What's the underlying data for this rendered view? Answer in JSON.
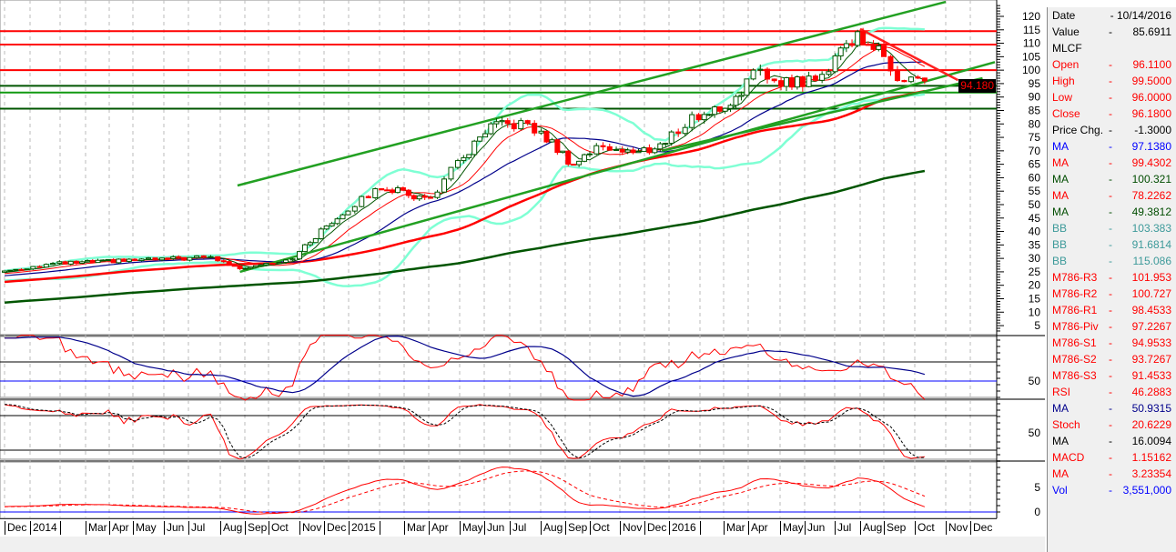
{
  "data_panel": {
    "rows": [
      {
        "label": "Date",
        "value": "- 10/14/2016",
        "color": "#000000"
      },
      {
        "label": "Value",
        "value": "85.6911",
        "color": "#000000"
      },
      {
        "label": "MLCF",
        "value": "",
        "color": "#000000"
      },
      {
        "label": "Open",
        "value": "96.1100",
        "color": "#ff0000"
      },
      {
        "label": "High",
        "value": "99.5000",
        "color": "#ff0000"
      },
      {
        "label": "Low",
        "value": "96.0000",
        "color": "#ff0000"
      },
      {
        "label": "Close",
        "value": "96.1800",
        "color": "#ff0000"
      },
      {
        "label": "Price Chg.",
        "value": "-1.3000",
        "color": "#000000"
      },
      {
        "label": "MA",
        "value": "97.1380",
        "color": "#0000ff"
      },
      {
        "label": "MA",
        "value": "99.4302",
        "color": "#ff0000"
      },
      {
        "label": "MA",
        "value": "100.321",
        "color": "#004d00"
      },
      {
        "label": "MA",
        "value": "78.2262",
        "color": "#ff0000"
      },
      {
        "label": "MA",
        "value": "49.3812",
        "color": "#004d00"
      },
      {
        "label": "BB",
        "value": "103.383",
        "color": "#3d9a9a"
      },
      {
        "label": "BB",
        "value": "91.6814",
        "color": "#3d9a9a"
      },
      {
        "label": "BB",
        "value": "115.086",
        "color": "#3d9a9a"
      },
      {
        "label": "M786-R3",
        "value": "101.953",
        "color": "#ff0000"
      },
      {
        "label": "M786-R2",
        "value": "100.727",
        "color": "#ff0000"
      },
      {
        "label": "M786-R1",
        "value": "98.4533",
        "color": "#ff0000"
      },
      {
        "label": "M786-Piv",
        "value": "97.2267",
        "color": "#ff0000"
      },
      {
        "label": "M786-S1",
        "value": "94.9533",
        "color": "#ff0000"
      },
      {
        "label": "M786-S2",
        "value": "93.7267",
        "color": "#ff0000"
      },
      {
        "label": "M786-S3",
        "value": "91.4533",
        "color": "#ff0000"
      },
      {
        "label": "RSI",
        "value": "46.2883",
        "color": "#ff0000"
      },
      {
        "label": "MA",
        "value": "50.9315",
        "color": "#00008b"
      },
      {
        "label": "Stoch",
        "value": "20.6229",
        "color": "#ff0000"
      },
      {
        "label": "MA",
        "value": "16.0094",
        "color": "#000000"
      },
      {
        "label": "MACD",
        "value": "1.15162",
        "color": "#ff0000"
      },
      {
        "label": "MA",
        "value": "3.23354",
        "color": "#ff0000"
      },
      {
        "label": "Vol",
        "value": "3,551,000",
        "color": "#0000ff"
      }
    ]
  },
  "price_tag": "94.180",
  "chart_data": {
    "type": "candlestick",
    "symbol": "MLCF",
    "x_labels": [
      "Dec",
      "2014",
      "",
      "Mar",
      "Apr",
      "May",
      "Jun",
      "Jul",
      "Aug",
      "Sep",
      "Oct",
      "Nov",
      "Dec",
      "2015",
      "",
      "Mar",
      "Apr",
      "May",
      "Jun",
      "Jul",
      "Aug",
      "Sep",
      "Oct",
      "Nov",
      "Dec",
      "2016",
      "",
      "Mar",
      "Apr",
      "May",
      "Jun",
      "Jul",
      "Aug",
      "Sep",
      "Oct",
      "Nov",
      "Dec"
    ],
    "price_axis": {
      "ylim": [
        0,
        125
      ],
      "ticks": [
        5,
        10,
        15,
        20,
        25,
        30,
        35,
        40,
        45,
        50,
        55,
        60,
        65,
        70,
        75,
        80,
        85,
        90,
        95,
        100,
        105,
        110,
        115,
        120
      ]
    },
    "rsi_axis": {
      "ticks": [
        50
      ],
      "levels": [
        70,
        50
      ]
    },
    "stoch_axis": {
      "ticks": [
        50
      ],
      "levels": [
        80,
        20
      ]
    },
    "macd_axis": {
      "ticks": [
        0,
        5
      ]
    },
    "price_path": [
      [
        0,
        25.3
      ],
      [
        1.8,
        28
      ],
      [
        7.7,
        30.4
      ],
      [
        8.7,
        26.3
      ],
      [
        10.7,
        29.7
      ],
      [
        12.1,
        42
      ],
      [
        14.1,
        56.8
      ],
      [
        16,
        51.7
      ],
      [
        16.9,
        65
      ],
      [
        18.3,
        78.7
      ],
      [
        19.3,
        80.4
      ],
      [
        20.2,
        75
      ],
      [
        21.3,
        65
      ],
      [
        22.4,
        72
      ],
      [
        23.7,
        69
      ],
      [
        24.8,
        72.7
      ],
      [
        25.7,
        82
      ],
      [
        27.2,
        87
      ],
      [
        28.2,
        98.4
      ],
      [
        29.3,
        95.7
      ],
      [
        30.5,
        96
      ],
      [
        31.1,
        107.5
      ],
      [
        32,
        113
      ],
      [
        32.6,
        109
      ],
      [
        33.3,
        99
      ],
      [
        34.4,
        95.7
      ]
    ],
    "horizontal_levels": {
      "red": [
        114.5,
        109.5,
        100
      ],
      "green": [
        94.18,
        91.68,
        85.69
      ]
    },
    "trendlines": [
      {
        "color": "#22a022",
        "from": [
          8.7,
          57.1
        ],
        "to": [
          35.0,
          125.4
        ]
      },
      {
        "color": "#22a022",
        "from": [
          8.8,
          25
        ],
        "to": [
          37.0,
          103
        ]
      },
      {
        "color": "#22a022",
        "from": [
          24.7,
          70
        ],
        "to": [
          36.5,
          97
        ]
      },
      {
        "color": "#ff2020",
        "from": [
          32,
          115.3
        ],
        "to": [
          35.5,
          96.3
        ]
      }
    ]
  }
}
